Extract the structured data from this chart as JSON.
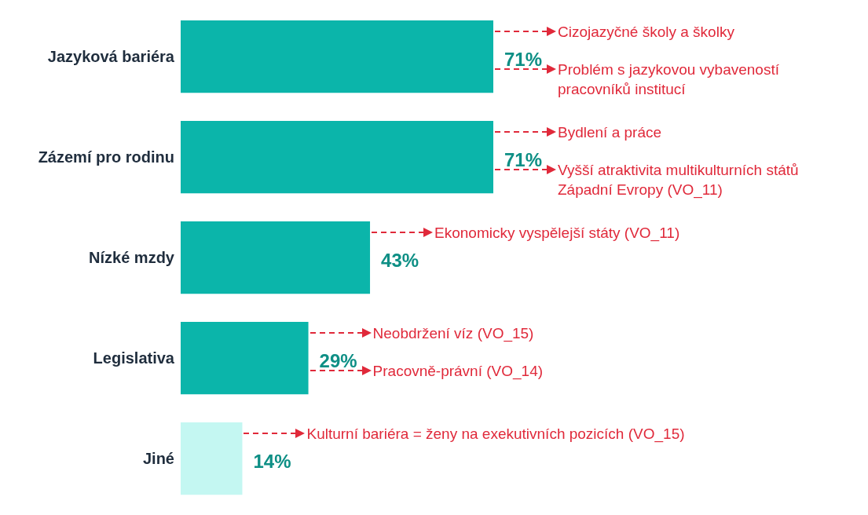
{
  "chart_data": {
    "type": "bar",
    "orientation": "horizontal",
    "categories": [
      "Jazyková bariéra",
      "Zázemí pro rodinu",
      "Nízké mzdy",
      "Legislativa",
      "Jiné"
    ],
    "values": [
      71,
      71,
      43,
      29,
      14
    ],
    "colors": [
      "#0bb5aa",
      "#0bb5aa",
      "#0bb5aa",
      "#0bb5aa",
      "#c4f7f2"
    ],
    "value_labels": [
      "71%",
      "71%",
      "43%",
      "29%",
      "14%"
    ],
    "grid": false,
    "legend": false,
    "annotations": [
      "Cizojazyčné školy a školky",
      "Problém s jazykovou vybaveností pracovníků institucí",
      "Bydlení a práce",
      "Vyšší atraktivita multikulturních států Západní Evropy (VO_11)",
      "Ekonomicky vyspělejší státy (VO_11)",
      "Neobdržení víz (VO_15)",
      "Pracovně-právní (VO_14)",
      "Kulturní bariéra = ženy na exekutivních pozicích (VO_15)"
    ]
  }
}
